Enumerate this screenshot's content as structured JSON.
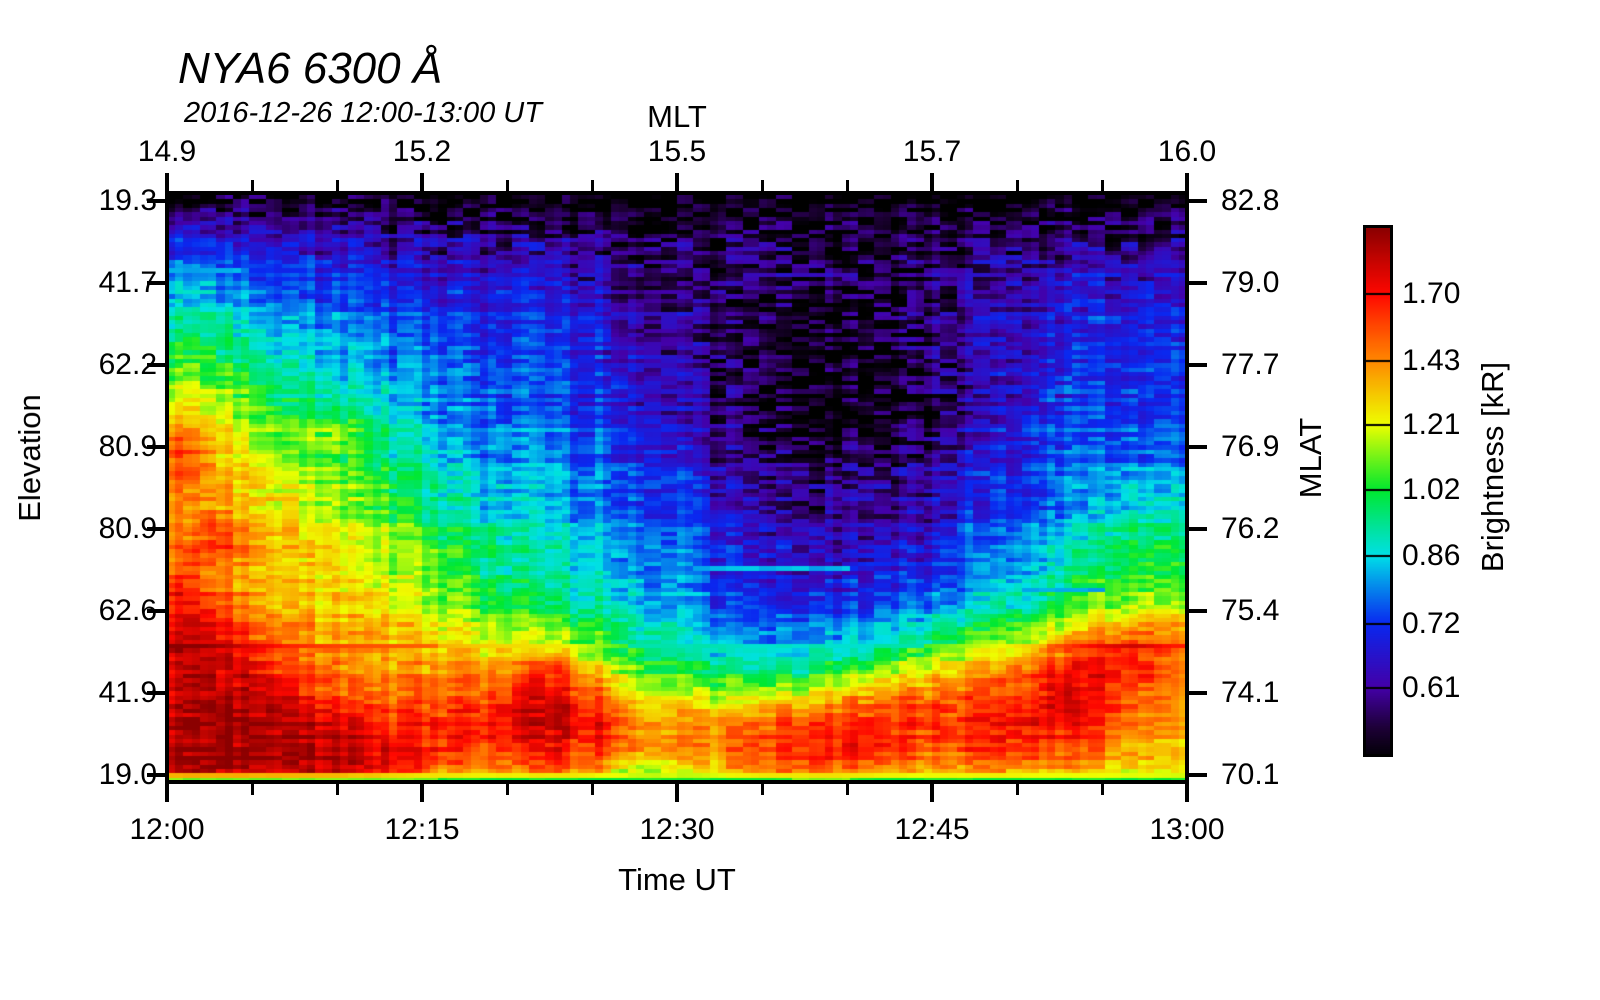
{
  "title": "NYA6 6300 Å",
  "subtitle": "2016-12-26 12:00-13:00 UT",
  "chart_data": {
    "type": "heatmap",
    "title": "NYA6 6300 Å",
    "subtitle": "2016-12-26 12:00-13:00 UT",
    "axes": {
      "top": {
        "label": "MLT",
        "ticks": [
          "14.9",
          "15.2",
          "15.5",
          "15.7",
          "16.0"
        ],
        "minor_divisions": 3
      },
      "bottom": {
        "label": "Time UT",
        "ticks": [
          "12:00",
          "12:15",
          "12:30",
          "12:45",
          "13:00"
        ],
        "minor_divisions": 3
      },
      "left": {
        "label": "Elevation",
        "ticks": [
          "19.3",
          "41.7",
          "62.2",
          "80.9",
          "80.9",
          "62.6",
          "41.9",
          "19.0"
        ]
      },
      "right": {
        "label": "MLAT",
        "ticks": [
          "82.8",
          "79.0",
          "77.7",
          "76.9",
          "76.2",
          "75.4",
          "74.1",
          "70.1"
        ]
      }
    },
    "colorbar": {
      "label": "Brightness [kR]",
      "tick_values": [
        1.7,
        1.43,
        1.21,
        1.02,
        0.86,
        0.72,
        0.61
      ],
      "tick_labels": [
        "1.70",
        "1.43",
        "1.21",
        "1.02",
        "0.86",
        "0.72",
        "0.61"
      ],
      "value_top": 2.02,
      "value_bottom": 0.513,
      "scale": "log",
      "segments": 8
    },
    "colormap_stops": [
      [
        0.505,
        "#000000"
      ],
      [
        0.55,
        "#1E0038"
      ],
      [
        0.61,
        "#4400A8"
      ],
      [
        0.72,
        "#0A28F0"
      ],
      [
        0.86,
        "#00E0E8"
      ],
      [
        1.02,
        "#00E830"
      ],
      [
        1.21,
        "#EEFF00"
      ],
      [
        1.43,
        "#FF8800"
      ],
      [
        1.7,
        "#FF0800"
      ],
      [
        2.02,
        "#8B0000"
      ]
    ],
    "grid": {
      "time_start": "12:00",
      "time_end": "13:00",
      "n_time_bins": 30,
      "row_order": "top_to_bottom",
      "n_rows": 24,
      "units": "kR",
      "values": [
        [
          0.55,
          0.55,
          0.55,
          0.54,
          0.54,
          0.53,
          0.53,
          0.52,
          0.52,
          0.52,
          0.52,
          0.52,
          0.52,
          0.52,
          0.51,
          0.51,
          0.51,
          0.51,
          0.51,
          0.51,
          0.51,
          0.51,
          0.51,
          0.51,
          0.51,
          0.51,
          0.52,
          0.52,
          0.52,
          0.52
        ],
        [
          0.66,
          0.64,
          0.63,
          0.62,
          0.61,
          0.6,
          0.59,
          0.58,
          0.58,
          0.57,
          0.57,
          0.56,
          0.56,
          0.55,
          0.55,
          0.54,
          0.54,
          0.54,
          0.53,
          0.53,
          0.53,
          0.53,
          0.54,
          0.54,
          0.55,
          0.55,
          0.56,
          0.56,
          0.57,
          0.57
        ],
        [
          0.74,
          0.72,
          0.7,
          0.68,
          0.66,
          0.65,
          0.64,
          0.63,
          0.62,
          0.62,
          0.61,
          0.61,
          0.6,
          0.59,
          0.58,
          0.57,
          0.57,
          0.56,
          0.56,
          0.55,
          0.55,
          0.55,
          0.56,
          0.57,
          0.58,
          0.59,
          0.6,
          0.61,
          0.62,
          0.62
        ],
        [
          0.82,
          0.79,
          0.76,
          0.74,
          0.72,
          0.71,
          0.7,
          0.68,
          0.67,
          0.66,
          0.66,
          0.65,
          0.64,
          0.62,
          0.6,
          0.58,
          0.57,
          0.56,
          0.56,
          0.55,
          0.56,
          0.56,
          0.57,
          0.59,
          0.61,
          0.63,
          0.64,
          0.66,
          0.67,
          0.66
        ],
        [
          0.9,
          0.86,
          0.82,
          0.79,
          0.77,
          0.76,
          0.74,
          0.72,
          0.71,
          0.7,
          0.7,
          0.69,
          0.67,
          0.64,
          0.61,
          0.58,
          0.56,
          0.55,
          0.55,
          0.54,
          0.55,
          0.56,
          0.58,
          0.61,
          0.63,
          0.65,
          0.67,
          0.69,
          0.7,
          0.68
        ],
        [
          0.97,
          0.93,
          0.88,
          0.84,
          0.81,
          0.79,
          0.77,
          0.74,
          0.73,
          0.72,
          0.72,
          0.71,
          0.69,
          0.66,
          0.62,
          0.59,
          0.56,
          0.54,
          0.53,
          0.53,
          0.54,
          0.55,
          0.58,
          0.61,
          0.64,
          0.66,
          0.68,
          0.7,
          0.71,
          0.69
        ],
        [
          1.04,
          0.99,
          0.93,
          0.88,
          0.84,
          0.81,
          0.79,
          0.76,
          0.74,
          0.73,
          0.72,
          0.72,
          0.7,
          0.67,
          0.63,
          0.59,
          0.56,
          0.53,
          0.52,
          0.52,
          0.53,
          0.54,
          0.57,
          0.61,
          0.64,
          0.67,
          0.69,
          0.71,
          0.72,
          0.7
        ],
        [
          1.12,
          1.06,
          0.99,
          0.92,
          0.87,
          0.84,
          0.81,
          0.78,
          0.76,
          0.74,
          0.73,
          0.73,
          0.71,
          0.68,
          0.64,
          0.6,
          0.56,
          0.53,
          0.51,
          0.51,
          0.52,
          0.53,
          0.56,
          0.6,
          0.64,
          0.67,
          0.7,
          0.72,
          0.73,
          0.71
        ],
        [
          1.22,
          1.14,
          1.07,
          1.0,
          0.94,
          0.89,
          0.85,
          0.81,
          0.78,
          0.76,
          0.75,
          0.74,
          0.72,
          0.7,
          0.66,
          0.61,
          0.57,
          0.53,
          0.51,
          0.51,
          0.52,
          0.53,
          0.56,
          0.6,
          0.64,
          0.68,
          0.71,
          0.73,
          0.74,
          0.72
        ],
        [
          1.42,
          1.22,
          1.14,
          1.08,
          1.12,
          1.05,
          0.92,
          0.85,
          0.8,
          0.78,
          0.77,
          0.76,
          0.74,
          0.72,
          0.68,
          0.63,
          0.58,
          0.55,
          0.53,
          0.53,
          0.54,
          0.55,
          0.58,
          0.62,
          0.66,
          0.69,
          0.72,
          0.74,
          0.76,
          0.74
        ],
        [
          1.58,
          1.3,
          1.2,
          1.12,
          1.1,
          1.04,
          0.94,
          0.87,
          0.82,
          0.8,
          0.79,
          0.78,
          0.76,
          0.74,
          0.7,
          0.65,
          0.6,
          0.57,
          0.55,
          0.55,
          0.56,
          0.57,
          0.6,
          0.64,
          0.67,
          0.7,
          0.73,
          0.76,
          0.78,
          0.76
        ],
        [
          1.52,
          1.36,
          1.28,
          1.18,
          1.1,
          1.04,
          0.98,
          0.91,
          0.86,
          0.83,
          0.81,
          0.8,
          0.78,
          0.76,
          0.72,
          0.67,
          0.62,
          0.59,
          0.57,
          0.57,
          0.58,
          0.59,
          0.62,
          0.66,
          0.69,
          0.72,
          0.75,
          0.79,
          0.82,
          0.8
        ],
        [
          1.46,
          1.38,
          1.32,
          1.24,
          1.16,
          1.1,
          1.04,
          0.96,
          0.9,
          0.86,
          0.84,
          0.82,
          0.8,
          0.78,
          0.74,
          0.69,
          0.64,
          0.61,
          0.59,
          0.59,
          0.6,
          0.61,
          0.64,
          0.68,
          0.71,
          0.74,
          0.78,
          0.83,
          0.88,
          0.86
        ],
        [
          1.42,
          1.55,
          1.36,
          1.28,
          1.22,
          1.16,
          1.1,
          1.02,
          0.95,
          0.9,
          0.87,
          0.85,
          0.83,
          0.8,
          0.76,
          0.71,
          0.66,
          0.63,
          0.61,
          0.61,
          0.62,
          0.63,
          0.66,
          0.7,
          0.73,
          0.77,
          0.82,
          0.88,
          0.96,
          0.93
        ],
        [
          1.48,
          1.58,
          1.4,
          1.32,
          1.26,
          1.21,
          1.15,
          1.08,
          1.0,
          0.94,
          0.9,
          0.87,
          0.85,
          0.82,
          0.78,
          0.73,
          0.68,
          0.65,
          0.63,
          0.63,
          0.64,
          0.66,
          0.69,
          0.73,
          0.76,
          0.8,
          0.86,
          0.93,
          1.02,
          0.99
        ],
        [
          1.6,
          1.44,
          1.36,
          1.31,
          1.27,
          1.24,
          1.19,
          1.12,
          1.05,
          0.98,
          0.93,
          0.9,
          0.88,
          0.85,
          0.81,
          0.75,
          0.7,
          0.67,
          0.65,
          0.66,
          0.68,
          0.7,
          0.73,
          0.77,
          0.8,
          0.85,
          0.92,
          1.0,
          1.06,
          1.03
        ],
        [
          1.72,
          1.52,
          1.4,
          1.34,
          1.3,
          1.28,
          1.24,
          1.18,
          1.11,
          1.04,
          0.99,
          0.95,
          0.92,
          0.89,
          0.84,
          0.78,
          0.73,
          0.7,
          0.69,
          0.7,
          0.72,
          0.75,
          0.79,
          0.83,
          0.87,
          0.92,
          1.0,
          1.08,
          1.15,
          1.12
        ],
        [
          1.82,
          1.66,
          1.48,
          1.4,
          1.35,
          1.32,
          1.3,
          1.26,
          1.2,
          1.14,
          1.1,
          1.06,
          1.0,
          0.94,
          0.88,
          0.82,
          0.77,
          0.75,
          0.74,
          0.76,
          0.79,
          0.83,
          0.88,
          0.93,
          0.98,
          1.04,
          1.14,
          1.26,
          1.36,
          1.3
        ],
        [
          1.88,
          1.78,
          1.6,
          1.46,
          1.4,
          1.36,
          1.34,
          1.32,
          1.28,
          1.24,
          1.22,
          1.2,
          1.1,
          1.02,
          0.95,
          0.88,
          0.84,
          0.82,
          0.82,
          0.86,
          0.9,
          0.96,
          1.04,
          1.1,
          1.16,
          1.26,
          1.42,
          1.58,
          1.66,
          1.48
        ],
        [
          1.9,
          1.86,
          1.8,
          1.58,
          1.48,
          1.42,
          1.4,
          1.4,
          1.4,
          1.44,
          1.52,
          1.6,
          1.36,
          1.18,
          1.08,
          1.0,
          0.96,
          0.95,
          0.96,
          1.02,
          1.1,
          1.18,
          1.28,
          1.34,
          1.42,
          1.56,
          1.7,
          1.76,
          1.72,
          1.5
        ],
        [
          1.92,
          1.9,
          1.88,
          1.78,
          1.62,
          1.52,
          1.5,
          1.52,
          1.56,
          1.62,
          1.72,
          1.78,
          1.58,
          1.36,
          1.24,
          1.18,
          1.18,
          1.2,
          1.26,
          1.34,
          1.42,
          1.48,
          1.52,
          1.54,
          1.58,
          1.68,
          1.76,
          1.72,
          1.6,
          1.42
        ],
        [
          1.94,
          1.93,
          1.92,
          1.88,
          1.78,
          1.68,
          1.62,
          1.64,
          1.66,
          1.68,
          1.78,
          1.84,
          1.72,
          1.52,
          1.4,
          1.36,
          1.4,
          1.46,
          1.52,
          1.58,
          1.62,
          1.62,
          1.6,
          1.6,
          1.64,
          1.72,
          1.7,
          1.62,
          1.5,
          1.38
        ],
        [
          1.94,
          1.94,
          1.93,
          1.92,
          1.88,
          1.84,
          1.78,
          1.7,
          1.64,
          1.6,
          1.66,
          1.74,
          1.68,
          1.54,
          1.46,
          1.44,
          1.5,
          1.58,
          1.64,
          1.68,
          1.7,
          1.64,
          1.58,
          1.6,
          1.66,
          1.62,
          1.56,
          1.48,
          1.42,
          1.34
        ],
        [
          1.92,
          1.92,
          1.9,
          1.88,
          1.84,
          1.78,
          1.66,
          1.54,
          1.46,
          1.4,
          1.44,
          1.5,
          1.4,
          1.24,
          1.18,
          1.22,
          1.34,
          1.44,
          1.5,
          1.52,
          1.48,
          1.4,
          1.36,
          1.38,
          1.42,
          1.38,
          1.34,
          1.3,
          1.28,
          1.24
        ]
      ]
    },
    "features": {
      "scan_line_y_frac": 0.7666,
      "bottom_edge_line": true,
      "cyan_dashes": [
        {
          "y_frac": 0.636,
          "x0_frac": 0.52,
          "x1_frac": 0.66
        },
        {
          "y_frac": 0.672,
          "x0_frac": 0.835,
          "x1_frac": 0.915
        },
        {
          "y_frac": 0.124,
          "x0_frac": 0.0,
          "x1_frac": 0.061
        }
      ]
    }
  }
}
